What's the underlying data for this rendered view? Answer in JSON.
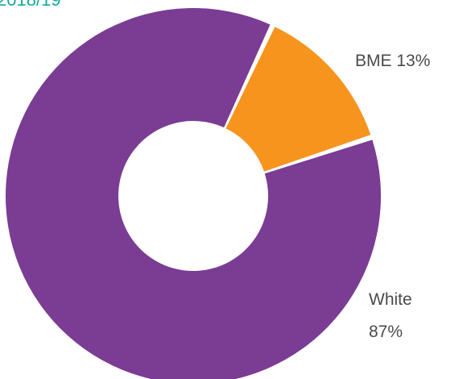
{
  "chart_data": {
    "type": "pie",
    "donut": true,
    "categories": [
      "BME",
      "White"
    ],
    "values": [
      13,
      87
    ],
    "unit": "%",
    "colors": [
      "#f7941d",
      "#7b3c94"
    ],
    "title": "",
    "legend": "none",
    "labels": [
      {
        "category": "BME",
        "lines": [
          "BME 13%"
        ]
      },
      {
        "category": "White",
        "lines": [
          "White",
          "87%"
        ]
      }
    ],
    "top_text_fragment": "2018/19"
  }
}
